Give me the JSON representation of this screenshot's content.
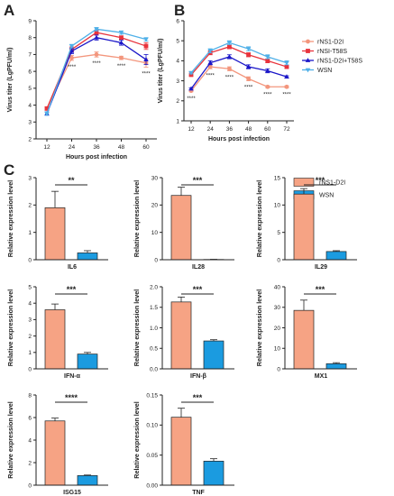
{
  "panel_labels": {
    "a": "A",
    "b": "B",
    "c": "C"
  },
  "colors": {
    "rNS1_D2I": "#f3967d",
    "rNSI_T58S": "#e8333c",
    "rNS1_D2I_T58S": "#1a16c8",
    "WSN": "#4fb0e8",
    "bar_rNS1_D2I": "#f6a384",
    "bar_WSN": "#1b9be0"
  },
  "legend_b": [
    {
      "label": "rNS1-D2I",
      "marker": "circle",
      "color": "#f3967d"
    },
    {
      "label": "rNSI-T58S",
      "marker": "square",
      "color": "#e8333c"
    },
    {
      "label": "rNS1-D2I+T58S",
      "marker": "triangle",
      "color": "#1a16c8"
    },
    {
      "label": "WSN",
      "marker": "triangle-down",
      "color": "#4fb0e8"
    }
  ],
  "legend_c": [
    {
      "label": "rNS1-D2I",
      "color": "#f6a384"
    },
    {
      "label": "WSN",
      "color": "#1b9be0"
    }
  ],
  "chart_data": [
    {
      "id": "A",
      "type": "line",
      "xlabel": "Hours post infection",
      "ylabel": "Virus titer (LgPFU/ml)",
      "x": [
        12,
        24,
        36,
        48,
        60
      ],
      "ylim": [
        2,
        9
      ],
      "yticks": [
        2,
        3,
        4,
        5,
        6,
        7,
        8,
        9
      ],
      "series": [
        {
          "name": "rNS1-D2I",
          "values": [
            3.8,
            6.8,
            7.0,
            6.8,
            6.5
          ],
          "errors": [
            0.1,
            0.15,
            0.15,
            0.1,
            0.25
          ]
        },
        {
          "name": "rNSI-T58S",
          "values": [
            3.8,
            7.3,
            8.3,
            8.0,
            7.5
          ],
          "errors": [
            0.1,
            0.15,
            0.15,
            0.1,
            0.2
          ]
        },
        {
          "name": "rNS1-D2I+T58S",
          "values": [
            3.5,
            7.2,
            8.0,
            7.7,
            6.7
          ],
          "errors": [
            0.1,
            0.15,
            0.15,
            0.15,
            0.3
          ]
        },
        {
          "name": "WSN",
          "values": [
            3.5,
            7.5,
            8.5,
            8.3,
            7.9
          ],
          "errors": [
            0.1,
            0.1,
            0.1,
            0.1,
            0.1
          ]
        }
      ],
      "annotations": [
        "****",
        "****",
        "****",
        "****"
      ]
    },
    {
      "id": "B",
      "type": "line",
      "xlabel": "Hours post infection",
      "ylabel": "Virus titer (LgPFU/ml)",
      "x": [
        12,
        24,
        36,
        48,
        60,
        72
      ],
      "ylim": [
        1,
        6
      ],
      "yticks": [
        1,
        2,
        3,
        4,
        5,
        6
      ],
      "series": [
        {
          "name": "rNS1-D2I",
          "values": [
            2.5,
            3.7,
            3.6,
            3.1,
            2.7,
            2.7
          ],
          "errors": [
            0.05,
            0.1,
            0.1,
            0.1,
            0.05,
            0.05
          ]
        },
        {
          "name": "rNSI-T58S",
          "values": [
            3.3,
            4.4,
            4.7,
            4.3,
            4.0,
            3.7
          ],
          "errors": [
            0.05,
            0.1,
            0.1,
            0.1,
            0.1,
            0.05
          ]
        },
        {
          "name": "rNS1-D2I+T58S",
          "values": [
            2.6,
            3.9,
            4.2,
            3.7,
            3.5,
            3.2
          ],
          "errors": [
            0.05,
            0.1,
            0.1,
            0.1,
            0.1,
            0.05
          ]
        },
        {
          "name": "WSN",
          "values": [
            3.4,
            4.5,
            4.9,
            4.6,
            4.2,
            3.9
          ],
          "errors": [
            0.05,
            0.1,
            0.1,
            0.1,
            0.1,
            0.1
          ]
        }
      ],
      "annotations": [
        "****",
        "****",
        "****",
        "****",
        "****",
        "****"
      ]
    },
    {
      "id": "IL6",
      "type": "bar",
      "xlabel": "IL6",
      "ylabel": "Relative expression level",
      "categories": [
        "rNS1-D2I",
        "WSN"
      ],
      "values": [
        1.9,
        0.25
      ],
      "errors": [
        0.6,
        0.08
      ],
      "ylim": [
        0,
        3
      ],
      "yticks": [
        0,
        1,
        2,
        3
      ],
      "tick_labels": [
        "0",
        "1",
        "2",
        "3"
      ],
      "significance": "**"
    },
    {
      "id": "IL28",
      "type": "bar",
      "xlabel": "IL28",
      "ylabel": "Relative expression level",
      "categories": [
        "rNS1-D2I",
        "WSN"
      ],
      "values": [
        23.5,
        0.1
      ],
      "errors": [
        3.0,
        0.05
      ],
      "ylim": [
        0,
        30
      ],
      "yticks": [
        0,
        10,
        20,
        30
      ],
      "tick_labels": [
        "0",
        "10",
        "20",
        "30"
      ],
      "significance": "***"
    },
    {
      "id": "IL29",
      "type": "bar",
      "xlabel": "IL29",
      "ylabel": "Relative expression level",
      "categories": [
        "rNS1-D2I",
        "WSN"
      ],
      "values": [
        12,
        1.5
      ],
      "errors": [
        1.0,
        0.15
      ],
      "ylim": [
        0,
        15
      ],
      "yticks": [
        0,
        5,
        10,
        15
      ],
      "tick_labels": [
        "0",
        "5",
        "10",
        "15"
      ],
      "significance": "***"
    },
    {
      "id": "IFN-a",
      "type": "bar",
      "xlabel": "IFN-α",
      "ylabel": "Relative expression level",
      "categories": [
        "rNS1-D2I",
        "WSN"
      ],
      "values": [
        3.6,
        0.9
      ],
      "errors": [
        0.35,
        0.1
      ],
      "ylim": [
        0,
        5
      ],
      "yticks": [
        0,
        1,
        2,
        3,
        4,
        5
      ],
      "tick_labels": [
        "0",
        "1",
        "2",
        "3",
        "4",
        "5"
      ],
      "significance": "***"
    },
    {
      "id": "IFN-b",
      "type": "bar",
      "xlabel": "IFN-β",
      "ylabel": "Relative expression level",
      "categories": [
        "rNS1-D2I",
        "WSN"
      ],
      "values": [
        1.63,
        0.68
      ],
      "errors": [
        0.12,
        0.03
      ],
      "ylim": [
        0,
        2.0
      ],
      "yticks": [
        0,
        0.5,
        1.0,
        1.5,
        2.0
      ],
      "tick_labels": [
        "0.0",
        "0.5",
        "1.0",
        "1.5",
        "2.0"
      ],
      "significance": "***"
    },
    {
      "id": "MX1",
      "type": "bar",
      "xlabel": "MX1",
      "ylabel": "Relative expression level",
      "categories": [
        "rNS1-D2I",
        "WSN"
      ],
      "values": [
        28.5,
        2.5
      ],
      "errors": [
        5.0,
        0.5
      ],
      "ylim": [
        0,
        40
      ],
      "yticks": [
        0,
        10,
        20,
        30,
        40
      ],
      "tick_labels": [
        "0",
        "10",
        "20",
        "30",
        "40"
      ],
      "significance": "***"
    },
    {
      "id": "ISG15",
      "type": "bar",
      "xlabel": "ISG15",
      "ylabel": "Relative expression level",
      "categories": [
        "rNS1-D2I",
        "WSN"
      ],
      "values": [
        5.7,
        0.85
      ],
      "errors": [
        0.25,
        0.05
      ],
      "ylim": [
        0,
        8
      ],
      "yticks": [
        0,
        2,
        4,
        6,
        8
      ],
      "tick_labels": [
        "0",
        "2",
        "4",
        "6",
        "8"
      ],
      "significance": "****"
    },
    {
      "id": "TNF",
      "type": "bar",
      "xlabel": "TNF",
      "ylabel": "Relative expression level",
      "categories": [
        "rNS1-D2I",
        "WSN"
      ],
      "values": [
        0.113,
        0.04
      ],
      "errors": [
        0.015,
        0.004
      ],
      "ylim": [
        0,
        0.15
      ],
      "yticks": [
        0,
        0.05,
        0.1,
        0.15
      ],
      "tick_labels": [
        "0.00",
        "0.05",
        "0.10",
        "0.15"
      ],
      "significance": "***"
    }
  ]
}
